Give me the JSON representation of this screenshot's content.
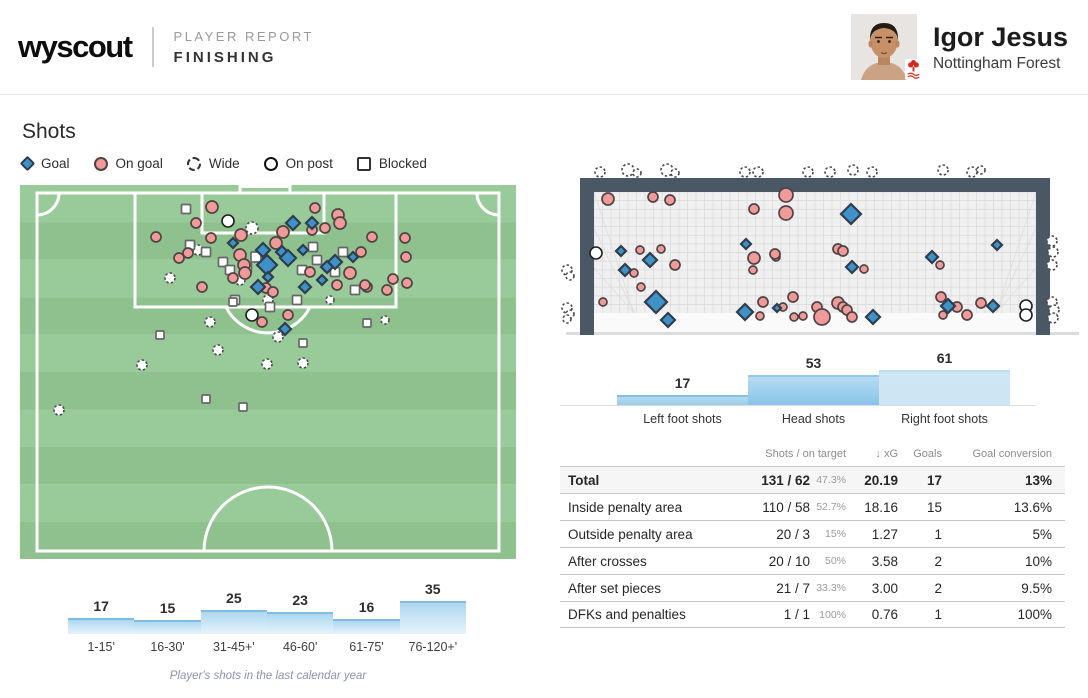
{
  "colors": {
    "goal_fill": "#4191c9",
    "goal_stroke": "#2e3e4c",
    "ongoal_fill": "#f19a9a",
    "ongoal_stroke": "#4f4444",
    "wide_stroke": "#4a4a4a",
    "onpost_stroke": "#1f1f1f",
    "blocked_stroke": "#666666",
    "pitch_green": "#8fc18f",
    "pitch_green_alt": "#99ca99",
    "pitch_line": "#ffffff",
    "goal_frame": "#4a5764",
    "net_bg": "#f1f0f1",
    "net_line": "#dcdbdc",
    "bar_edge": "#7fbce0"
  },
  "header": {
    "logo": "wyscout",
    "report_type": "PLAYER REPORT",
    "report_name": "FINISHING",
    "player": {
      "name": "Igor Jesus",
      "team": "Nottingham Forest"
    }
  },
  "shots": {
    "title": "Shots",
    "legend": [
      {
        "key": "goal",
        "label": "Goal"
      },
      {
        "key": "ongoal",
        "label": "On goal"
      },
      {
        "key": "wide",
        "label": "Wide"
      },
      {
        "key": "onpost",
        "label": "On post"
      },
      {
        "key": "blocked",
        "label": "Blocked"
      }
    ]
  },
  "pitch": {
    "markers": {
      "goal": [
        [
          273,
          38,
          7
        ],
        [
          292,
          38,
          6
        ],
        [
          213,
          58,
          5
        ],
        [
          243,
          65,
          7
        ],
        [
          262,
          67,
          6
        ],
        [
          283,
          65,
          5
        ],
        [
          268,
          73,
          8
        ],
        [
          247,
          80,
          10
        ],
        [
          315,
          77,
          7
        ],
        [
          333,
          72,
          5
        ],
        [
          302,
          95,
          5
        ],
        [
          238,
          102,
          7
        ],
        [
          248,
          92,
          5
        ],
        [
          285,
          102,
          6
        ],
        [
          265,
          144,
          6
        ],
        [
          307,
          82,
          6
        ]
      ],
      "ongoal": [
        [
          192,
          22,
          6
        ],
        [
          176,
          38,
          5
        ],
        [
          136,
          52,
          5
        ],
        [
          159,
          73,
          5
        ],
        [
          168,
          68,
          5
        ],
        [
          191,
          53,
          5
        ],
        [
          221,
          50,
          6
        ],
        [
          220,
          70,
          6
        ],
        [
          224,
          80,
          6
        ],
        [
          225,
          88,
          6
        ],
        [
          213,
          93,
          5
        ],
        [
          263,
          47,
          6
        ],
        [
          256,
          58,
          6
        ],
        [
          295,
          23,
          5
        ],
        [
          318,
          30,
          6
        ],
        [
          320,
          38,
          6
        ],
        [
          292,
          45,
          5
        ],
        [
          305,
          43,
          5
        ],
        [
          352,
          52,
          5
        ],
        [
          341,
          67,
          5
        ],
        [
          330,
          88,
          6
        ],
        [
          317,
          100,
          5
        ],
        [
          347,
          102,
          5
        ],
        [
          182,
          102,
          5
        ],
        [
          246,
          103,
          5
        ],
        [
          253,
          107,
          5
        ],
        [
          290,
          87,
          5
        ],
        [
          367,
          105,
          5
        ],
        [
          268,
          130,
          5
        ],
        [
          242,
          137,
          5
        ],
        [
          386,
          72,
          5
        ],
        [
          373,
          94,
          5
        ],
        [
          345,
          100,
          5
        ],
        [
          385,
          53,
          5
        ],
        [
          387,
          98,
          5
        ]
      ],
      "blocked": [
        [
          166,
          24,
          9
        ],
        [
          170,
          60,
          9
        ],
        [
          186,
          67,
          9
        ],
        [
          203,
          77,
          9
        ],
        [
          210,
          85,
          9
        ],
        [
          236,
          72,
          10
        ],
        [
          227,
          83,
          9
        ],
        [
          293,
          62,
          9
        ],
        [
          323,
          67,
          9
        ],
        [
          282,
          85,
          9
        ],
        [
          315,
          87,
          9
        ],
        [
          297,
          75,
          9
        ],
        [
          335,
          105,
          9
        ],
        [
          277,
          115,
          9
        ],
        [
          215,
          115,
          9
        ],
        [
          140,
          150,
          8
        ],
        [
          213,
          117,
          8
        ],
        [
          250,
          122,
          9
        ],
        [
          283,
          158,
          8
        ],
        [
          347,
          138,
          8
        ],
        [
          186,
          214,
          8
        ],
        [
          223,
          222,
          8
        ]
      ],
      "wide": [
        [
          232,
          43,
          6
        ],
        [
          178,
          65,
          5
        ],
        [
          220,
          95,
          5
        ],
        [
          248,
          115,
          5
        ],
        [
          190,
          137,
          5
        ],
        [
          198,
          165,
          5
        ],
        [
          122,
          180,
          5
        ],
        [
          247,
          179,
          5
        ],
        [
          283,
          178,
          5
        ],
        [
          258,
          152,
          5
        ],
        [
          365,
          135,
          4
        ],
        [
          39,
          225,
          5
        ],
        [
          310,
          115,
          4
        ],
        [
          150,
          93,
          5
        ]
      ],
      "onpost": [
        [
          232,
          130,
          6
        ],
        [
          208,
          36,
          6
        ]
      ]
    }
  },
  "goal_view": {
    "markers": {
      "wide": [
        [
          40,
          14,
          5
        ],
        [
          68,
          12,
          6
        ],
        [
          77,
          15,
          4
        ],
        [
          107,
          12,
          6
        ],
        [
          115,
          15,
          4
        ],
        [
          185,
          14,
          5
        ],
        [
          198,
          14,
          5
        ],
        [
          248,
          14,
          5
        ],
        [
          270,
          14,
          5
        ],
        [
          293,
          12,
          5
        ],
        [
          312,
          14,
          5
        ],
        [
          383,
          12,
          5
        ],
        [
          412,
          14,
          5
        ],
        [
          421,
          12,
          4
        ],
        [
          7,
          112,
          5
        ],
        [
          10,
          118,
          4
        ],
        [
          7,
          150,
          5
        ],
        [
          10,
          156,
          4
        ],
        [
          7,
          161,
          4
        ],
        [
          492,
          83,
          5
        ],
        [
          493,
          94,
          5
        ],
        [
          492,
          107,
          5
        ],
        [
          492,
          144,
          5
        ],
        [
          494,
          152,
          5
        ],
        [
          493,
          160,
          5
        ]
      ],
      "onpost": [
        [
          36,
          95,
          6
        ],
        [
          466,
          148,
          6
        ],
        [
          466,
          157,
          6
        ]
      ],
      "ongoal": [
        [
          48,
          41,
          6
        ],
        [
          93,
          39,
          5
        ],
        [
          110,
          42,
          5
        ],
        [
          194,
          51,
          5
        ],
        [
          226,
          37,
          7
        ],
        [
          226,
          55,
          7
        ],
        [
          80,
          92,
          4
        ],
        [
          101,
          91,
          4
        ],
        [
          74,
          115,
          4
        ],
        [
          115,
          107,
          5
        ],
        [
          43,
          144,
          4
        ],
        [
          81,
          129,
          4
        ],
        [
          194,
          100,
          6
        ],
        [
          203,
          144,
          5
        ],
        [
          193,
          112,
          4
        ],
        [
          200,
          158,
          4
        ],
        [
          216,
          99,
          4
        ],
        [
          215,
          96,
          5
        ],
        [
          223,
          149,
          4
        ],
        [
          233,
          139,
          5
        ],
        [
          234,
          159,
          4
        ],
        [
          243,
          158,
          4
        ],
        [
          257,
          149,
          5
        ],
        [
          262,
          159,
          8
        ],
        [
          278,
          91,
          5
        ],
        [
          283,
          93,
          5
        ],
        [
          278,
          145,
          6
        ],
        [
          283,
          149,
          5
        ],
        [
          287,
          152,
          5
        ],
        [
          292,
          159,
          5
        ],
        [
          304,
          111,
          4
        ],
        [
          380,
          107,
          4
        ],
        [
          381,
          139,
          5
        ],
        [
          397,
          149,
          5
        ],
        [
          407,
          157,
          5
        ],
        [
          383,
          157,
          4
        ],
        [
          421,
          145,
          5
        ]
      ],
      "goal": [
        [
          291,
          56,
          10
        ],
        [
          186,
          86,
          5
        ],
        [
          61,
          93,
          5
        ],
        [
          65,
          112,
          6
        ],
        [
          90,
          102,
          7
        ],
        [
          96,
          144,
          11
        ],
        [
          108,
          162,
          7
        ],
        [
          185,
          154,
          8
        ],
        [
          217,
          150,
          4
        ],
        [
          292,
          109,
          6
        ],
        [
          313,
          159,
          7
        ],
        [
          372,
          99,
          6
        ],
        [
          437,
          87,
          5
        ],
        [
          388,
          148,
          7
        ],
        [
          433,
          148,
          6
        ]
      ]
    }
  },
  "chart_data": [
    {
      "type": "bar",
      "name": "shots-by-minute-interval",
      "categories": [
        "1-15'",
        "16-30'",
        "31-45+'",
        "46-60'",
        "61-75'",
        "76-120+'"
      ],
      "values": [
        17,
        15,
        25,
        23,
        16,
        35
      ],
      "caption": "Player's shots in the last calendar year"
    },
    {
      "type": "bar",
      "name": "shots-by-body-part",
      "categories": [
        "Left foot shots",
        "Head shots",
        "Right foot shots"
      ],
      "values": [
        17,
        53,
        61
      ],
      "bar_fills": [
        {
          "top": "#b3d9f0",
          "bottom": "#9bcdeb",
          "edge": "#85c0e2"
        },
        {
          "top": "#b7dcf2",
          "bottom": "#88c3e8",
          "edge": "#93c9e6"
        },
        {
          "top": "#cfe6f5",
          "bottom": "#cde5f4",
          "edge": "#bdddf0"
        }
      ]
    },
    {
      "type": "table",
      "name": "shooting-stats",
      "sort_icon": "↓",
      "columns": [
        "Shots / on target",
        "xG",
        "Goals",
        "Goal conversion"
      ],
      "rows": [
        {
          "label": "Total",
          "shots": "131 / 62",
          "pct": "47.3%",
          "xg": "20.19",
          "goals": "17",
          "conv": "13%",
          "bold": true
        },
        {
          "label": "Inside penalty area",
          "shots": "110 / 58",
          "pct": "52.7%",
          "xg": "18.16",
          "goals": "15",
          "conv": "13.6%"
        },
        {
          "label": "Outside penalty area",
          "shots": "20 / 3",
          "pct": "15%",
          "xg": "1.27",
          "goals": "1",
          "conv": "5%"
        },
        {
          "label": "After crosses",
          "shots": "20 / 10",
          "pct": "50%",
          "xg": "3.58",
          "goals": "2",
          "conv": "10%"
        },
        {
          "label": "After set pieces",
          "shots": "21 / 7",
          "pct": "33.3%",
          "xg": "3.00",
          "goals": "2",
          "conv": "9.5%"
        },
        {
          "label": "DFKs and penalties",
          "shots": "1 / 1",
          "pct": "100%",
          "xg": "0.76",
          "goals": "1",
          "conv": "100%"
        }
      ]
    }
  ]
}
